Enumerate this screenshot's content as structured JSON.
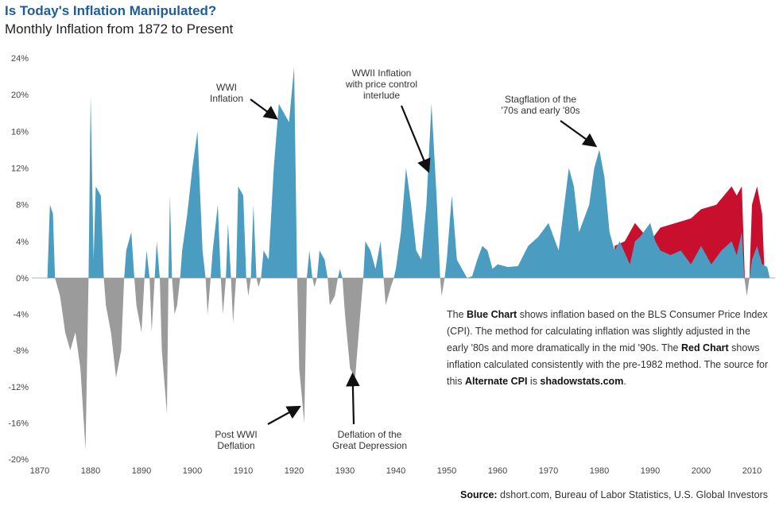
{
  "title": "Is Today's Inflation Manipulated?",
  "subtitle": "Monthly Inflation from 1872 to Present",
  "chart_data": {
    "type": "area",
    "title": "Is Today's Inflation Manipulated?",
    "subtitle": "Monthly Inflation from 1872 to Present",
    "xlabel": "",
    "ylabel": "",
    "xlim": [
      1870,
      2014
    ],
    "ylim": [
      -20,
      24
    ],
    "x_ticks": [
      "1870",
      "1880",
      "1890",
      "1900",
      "1910",
      "1920",
      "1930",
      "1940",
      "1950",
      "1960",
      "1970",
      "1980",
      "1990",
      "2000",
      "2010"
    ],
    "y_ticks": [
      "24%",
      "20%",
      "16%",
      "12%",
      "8%",
      "4%",
      "0%",
      "-4%",
      "-8%",
      "-12%",
      "-16%",
      "-20%"
    ],
    "colors": {
      "positive": "#4a9cc0",
      "negative": "#9b9b9b",
      "alternate": "#c8102e"
    },
    "series": [
      {
        "name": "Blue Chart (BLS CPI)",
        "points": [
          [
            1871.5,
            0
          ],
          [
            1872,
            8
          ],
          [
            1872.6,
            7
          ],
          [
            1873,
            0
          ],
          [
            1874,
            -2
          ],
          [
            1875,
            -6
          ],
          [
            1876,
            -8
          ],
          [
            1877,
            -6
          ],
          [
            1878,
            -10
          ],
          [
            1879,
            -19
          ],
          [
            1879.6,
            0
          ],
          [
            1880,
            20
          ],
          [
            1880.6,
            2
          ],
          [
            1881,
            10
          ],
          [
            1882,
            9
          ],
          [
            1882.6,
            0
          ],
          [
            1883,
            -3
          ],
          [
            1884,
            -6
          ],
          [
            1885,
            -11
          ],
          [
            1886,
            -8
          ],
          [
            1886.6,
            0
          ],
          [
            1887,
            3
          ],
          [
            1888,
            5
          ],
          [
            1888.6,
            0
          ],
          [
            1889,
            -3
          ],
          [
            1890,
            -6
          ],
          [
            1890.6,
            0
          ],
          [
            1891,
            3
          ],
          [
            1891.6,
            0
          ],
          [
            1892,
            -6
          ],
          [
            1892.6,
            0
          ],
          [
            1893,
            4
          ],
          [
            1893.6,
            0
          ],
          [
            1894,
            -8
          ],
          [
            1895,
            -15
          ],
          [
            1895.3,
            0
          ],
          [
            1895.6,
            9
          ],
          [
            1896,
            0
          ],
          [
            1896.5,
            -4
          ],
          [
            1897,
            -3
          ],
          [
            1897.6,
            0
          ],
          [
            1898,
            3
          ],
          [
            1899,
            7
          ],
          [
            1900,
            12
          ],
          [
            1901,
            16
          ],
          [
            1902,
            3
          ],
          [
            1902.6,
            0
          ],
          [
            1903,
            -4
          ],
          [
            1903.6,
            0
          ],
          [
            1904,
            3
          ],
          [
            1905,
            8
          ],
          [
            1905.6,
            0
          ],
          [
            1906,
            -4
          ],
          [
            1906.6,
            0
          ],
          [
            1907,
            6
          ],
          [
            1907.6,
            0
          ],
          [
            1908,
            -5
          ],
          [
            1908.6,
            0
          ],
          [
            1909,
            10
          ],
          [
            1910,
            9
          ],
          [
            1910.6,
            0
          ],
          [
            1911,
            -2
          ],
          [
            1911.5,
            0
          ],
          [
            1912,
            8
          ],
          [
            1912.6,
            0
          ],
          [
            1913,
            -1
          ],
          [
            1913.5,
            0
          ],
          [
            1914,
            3
          ],
          [
            1915,
            2
          ],
          [
            1916,
            12
          ],
          [
            1917,
            19
          ],
          [
            1918,
            18
          ],
          [
            1919,
            17
          ],
          [
            1920,
            23
          ],
          [
            1920.6,
            0
          ],
          [
            1921,
            -10
          ],
          [
            1922,
            -16
          ],
          [
            1922.5,
            0
          ],
          [
            1923,
            3
          ],
          [
            1923.6,
            0
          ],
          [
            1924,
            -1
          ],
          [
            1924.5,
            0
          ],
          [
            1925,
            3
          ],
          [
            1926,
            2
          ],
          [
            1926.6,
            0
          ],
          [
            1927,
            -3
          ],
          [
            1928,
            -2
          ],
          [
            1928.6,
            0
          ],
          [
            1929,
            1
          ],
          [
            1929.5,
            0
          ],
          [
            1930,
            -4
          ],
          [
            1931,
            -10
          ],
          [
            1932,
            -11
          ],
          [
            1933,
            -4
          ],
          [
            1933.6,
            0
          ],
          [
            1934,
            4
          ],
          [
            1935,
            3
          ],
          [
            1936,
            1
          ],
          [
            1937,
            4
          ],
          [
            1937.6,
            0
          ],
          [
            1938,
            -3
          ],
          [
            1939,
            -1
          ],
          [
            1939.6,
            0
          ],
          [
            1940,
            1
          ],
          [
            1941,
            5
          ],
          [
            1942,
            12
          ],
          [
            1943,
            8
          ],
          [
            1944,
            3
          ],
          [
            1945,
            2
          ],
          [
            1946,
            8
          ],
          [
            1947,
            19
          ],
          [
            1948,
            9
          ],
          [
            1948.7,
            0
          ],
          [
            1949,
            -2
          ],
          [
            1949.6,
            0
          ],
          [
            1950,
            2
          ],
          [
            1951,
            9
          ],
          [
            1952,
            2
          ],
          [
            1953,
            1
          ],
          [
            1954,
            0
          ],
          [
            1955,
            0.2
          ],
          [
            1956,
            2
          ],
          [
            1957,
            3.5
          ],
          [
            1958,
            3
          ],
          [
            1959,
            1
          ],
          [
            1960,
            1.5
          ],
          [
            1962,
            1.2
          ],
          [
            1964,
            1.3
          ],
          [
            1966,
            3.5
          ],
          [
            1968,
            4.5
          ],
          [
            1970,
            6
          ],
          [
            1972,
            3
          ],
          [
            1974,
            12
          ],
          [
            1975,
            10
          ],
          [
            1976,
            5
          ],
          [
            1977,
            6.5
          ],
          [
            1978,
            8
          ],
          [
            1979,
            12
          ],
          [
            1980,
            14
          ],
          [
            1981,
            11
          ],
          [
            1982,
            5
          ],
          [
            1983,
            3
          ],
          [
            1984,
            4
          ],
          [
            1986,
            1.5
          ],
          [
            1987,
            4
          ],
          [
            1988,
            4.5
          ],
          [
            1990,
            6
          ],
          [
            1991,
            4
          ],
          [
            1992,
            3
          ],
          [
            1994,
            2.5
          ],
          [
            1996,
            3
          ],
          [
            1998,
            1.5
          ],
          [
            2000,
            3.5
          ],
          [
            2002,
            1.5
          ],
          [
            2004,
            3
          ],
          [
            2006,
            4
          ],
          [
            2007,
            2.5
          ],
          [
            2008,
            5
          ],
          [
            2008.5,
            0
          ],
          [
            2009,
            -2
          ],
          [
            2009.5,
            0
          ],
          [
            2010,
            2
          ],
          [
            2011,
            3.5
          ],
          [
            2012,
            1.5
          ],
          [
            2013,
            1.2
          ],
          [
            2013.5,
            0
          ]
        ]
      },
      {
        "name": "Red Chart (Alternate CPI, pre-1982 method)",
        "points": [
          [
            1983,
            0
          ],
          [
            1983,
            3.5
          ],
          [
            1985,
            4
          ],
          [
            1987,
            6
          ],
          [
            1990,
            4
          ],
          [
            1992,
            5.5
          ],
          [
            1995,
            6
          ],
          [
            1998,
            6.5
          ],
          [
            2000,
            7.5
          ],
          [
            2003,
            8
          ],
          [
            2006,
            10
          ],
          [
            2007,
            9
          ],
          [
            2008,
            10
          ],
          [
            2008.6,
            0
          ],
          [
            2009,
            -1
          ],
          [
            2009.5,
            0
          ],
          [
            2010,
            8
          ],
          [
            2011,
            10
          ],
          [
            2012,
            7
          ],
          [
            2012.5,
            0
          ]
        ]
      }
    ],
    "annotations": [
      {
        "id": "wwi",
        "text": [
          "WWI",
          "Inflation"
        ],
        "x": 1917,
        "y": 18
      },
      {
        "id": "wwii",
        "text": [
          "WWII Inflation",
          "with price control",
          "interlude"
        ],
        "x": 1947,
        "y": 13
      },
      {
        "id": "stag",
        "text": [
          "Stagflation of the",
          "'70s and early '80s"
        ],
        "x": 1979,
        "y": 14
      },
      {
        "id": "postwwi",
        "text": [
          "Post WWI",
          "Deflation"
        ],
        "x": 1922,
        "y": -14.5
      },
      {
        "id": "depr",
        "text": [
          "Deflation of the",
          "Great Depression"
        ],
        "x": 1932,
        "y": -11
      }
    ]
  },
  "note": {
    "p1": "The ",
    "b1": "Blue Chart",
    "p2": " shows inflation based on the BLS Consumer Price Index (CPI). The method for calculating inflation was slightly adjusted in the early '80s and more dramatically in the mid '90s. The ",
    "b2": "Red Chart",
    "p3": " shows inflation calculated consistently with the pre-1982 method. The source for this ",
    "b3": "Alternate CPI",
    "p4": " is ",
    "b4": "shadowstats.com",
    "p5": "."
  },
  "source": {
    "label": "Source:",
    "text": " dshort.com, Bureau of Labor Statistics, U.S. Global Investors"
  }
}
